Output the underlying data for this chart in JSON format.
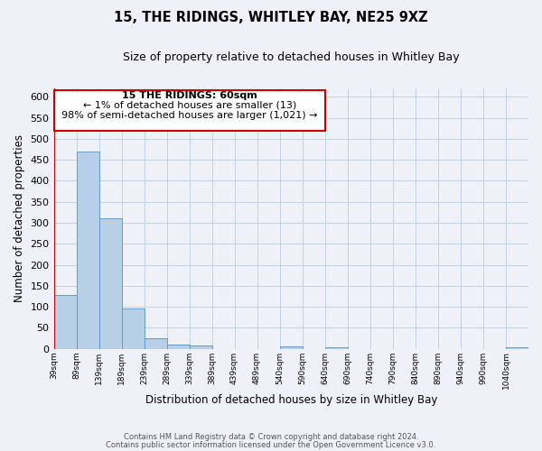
{
  "title": "15, THE RIDINGS, WHITLEY BAY, NE25 9XZ",
  "subtitle": "Size of property relative to detached houses in Whitley Bay",
  "xlabel": "Distribution of detached houses by size in Whitley Bay",
  "ylabel": "Number of detached properties",
  "bar_color": "#b8cfe8",
  "bar_edge_color": "#6699cc",
  "annotation_box_color": "#cc0000",
  "annotation_line1": "15 THE RIDINGS: 60sqm",
  "annotation_line2": "← 1% of detached houses are smaller (13)",
  "annotation_line3": "98% of semi-detached houses are larger (1,021) →",
  "vline_color": "#cc0000",
  "bins": [
    39,
    89,
    139,
    189,
    239,
    289,
    339,
    389,
    439,
    489,
    540,
    590,
    640,
    690,
    740,
    790,
    840,
    890,
    940,
    990,
    1040
  ],
  "bin_width": 50,
  "values": [
    128,
    470,
    310,
    95,
    25,
    10,
    8,
    0,
    0,
    0,
    5,
    0,
    3,
    0,
    0,
    0,
    0,
    0,
    0,
    0,
    4
  ],
  "tick_labels": [
    "39sqm",
    "89sqm",
    "139sqm",
    "189sqm",
    "239sqm",
    "289sqm",
    "339sqm",
    "389sqm",
    "439sqm",
    "489sqm",
    "540sqm",
    "590sqm",
    "640sqm",
    "690sqm",
    "740sqm",
    "790sqm",
    "840sqm",
    "890sqm",
    "940sqm",
    "990sqm",
    "1040sqm"
  ],
  "ylim": [
    0,
    620
  ],
  "yticks": [
    0,
    50,
    100,
    150,
    200,
    250,
    300,
    350,
    400,
    450,
    500,
    550,
    600
  ],
  "footer_line1": "Contains HM Land Registry data © Crown copyright and database right 2024.",
  "footer_line2": "Contains public sector information licensed under the Open Government Licence v3.0.",
  "background_color": "#eef2f8",
  "grid_color": "#c5d0e0"
}
